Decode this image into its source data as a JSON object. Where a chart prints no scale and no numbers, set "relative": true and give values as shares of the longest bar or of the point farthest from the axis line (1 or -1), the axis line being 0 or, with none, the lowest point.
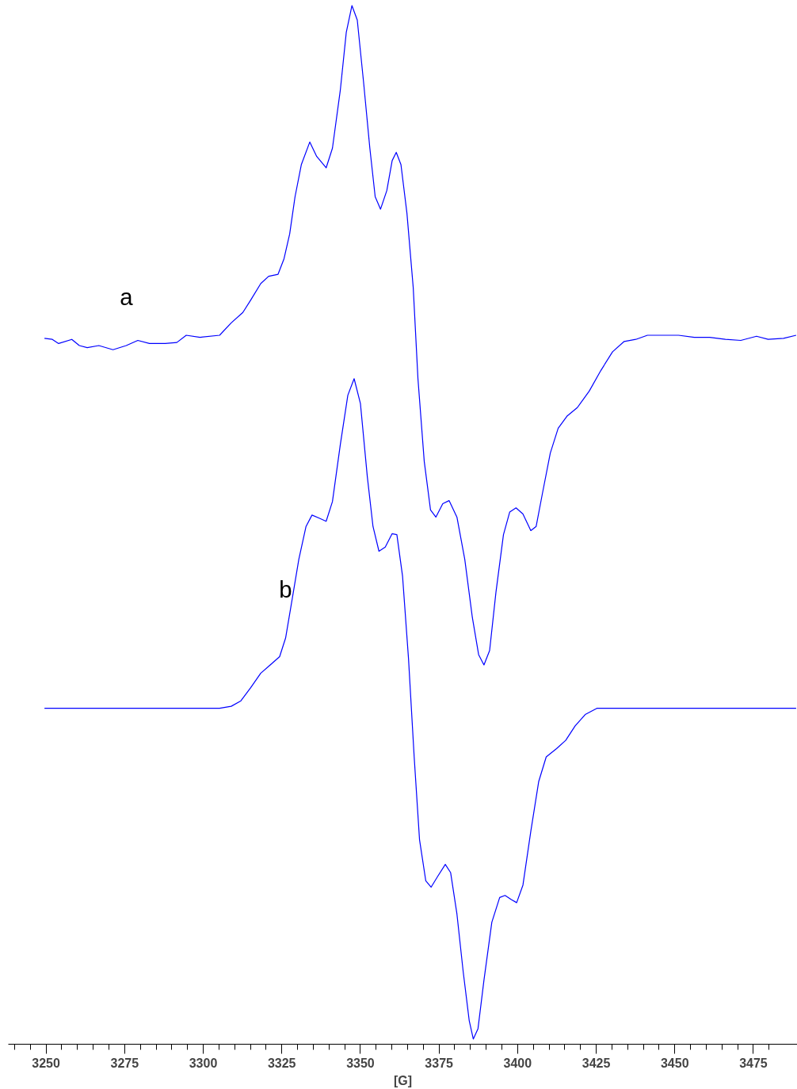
{
  "chart_data": {
    "type": "line",
    "relative": true,
    "xlabel": "[G]",
    "legend": false,
    "grid": false,
    "tick_labels": "x",
    "line_style": "solid",
    "marker": "none",
    "xlim": [
      3238,
      3489
    ],
    "xticks": [
      {
        "value": 3240,
        "label": null
      },
      {
        "value": 3245,
        "label": null
      },
      3250,
      {
        "value": 3255,
        "label": null
      },
      {
        "value": 3260,
        "label": null
      },
      {
        "value": 3265,
        "label": null
      },
      {
        "value": 3270,
        "label": null
      },
      3275,
      {
        "value": 3280,
        "label": null
      },
      {
        "value": 3285,
        "label": null
      },
      {
        "value": 3290,
        "label": null
      },
      {
        "value": 3295,
        "label": null
      },
      3300,
      {
        "value": 3305,
        "label": null
      },
      {
        "value": 3310,
        "label": null
      },
      {
        "value": 3315,
        "label": null
      },
      {
        "value": 3320,
        "label": null
      },
      3325,
      {
        "value": 3330,
        "label": null
      },
      {
        "value": 3335,
        "label": null
      },
      {
        "value": 3340,
        "label": null
      },
      {
        "value": 3345,
        "label": null
      },
      3350,
      {
        "value": 3355,
        "label": null
      },
      {
        "value": 3360,
        "label": null
      },
      {
        "value": 3365,
        "label": null
      },
      {
        "value": 3370,
        "label": null
      },
      3375,
      {
        "value": 3380,
        "label": null
      },
      {
        "value": 3385,
        "label": null
      },
      {
        "value": 3390,
        "label": null
      },
      {
        "value": 3395,
        "label": null
      },
      3400,
      {
        "value": 3405,
        "label": null
      },
      {
        "value": 3410,
        "label": null
      },
      {
        "value": 3415,
        "label": null
      },
      {
        "value": 3420,
        "label": null
      },
      3425,
      {
        "value": 3430,
        "label": null
      },
      {
        "value": 3435,
        "label": null
      },
      {
        "value": 3440,
        "label": null
      },
      {
        "value": 3445,
        "label": null
      },
      3450,
      {
        "value": 3455,
        "label": null
      },
      {
        "value": 3460,
        "label": null
      },
      {
        "value": 3465,
        "label": null
      },
      {
        "value": 3470,
        "label": null
      },
      3475,
      {
        "value": 3480,
        "label": null
      }
    ],
    "series": [
      {
        "name": "a",
        "color": "#0000ff",
        "x": [
          3249.5,
          3252.0,
          3254.0,
          3258.2,
          3260.6,
          3263.1,
          3266.8,
          3271.3,
          3275.5,
          3279.2,
          3282.9,
          3287.9,
          3291.6,
          3294.6,
          3299.0,
          3305.2,
          3308.9,
          3312.6,
          3315.1,
          3318.3,
          3320.8,
          3323.8,
          3325.7,
          3327.5,
          3329.2,
          3331.2,
          3333.9,
          3336.1,
          3339.1,
          3341.1,
          3343.6,
          3345.5,
          3347.3,
          3349.0,
          3351.0,
          3353.0,
          3354.7,
          3356.4,
          3358.4,
          3360.1,
          3361.4,
          3362.9,
          3364.8,
          3366.8,
          3368.3,
          3370.3,
          3372.3,
          3374.0,
          3376.2,
          3378.2,
          3380.7,
          3383.2,
          3385.6,
          3387.6,
          3389.3,
          3391.1,
          3393.1,
          3395.5,
          3397.5,
          3399.5,
          3401.7,
          3404.2,
          3405.9,
          3407.9,
          3410.4,
          3412.9,
          3415.8,
          3419.0,
          3422.8,
          3426.5,
          3430.2,
          3433.9,
          3437.6,
          3441.3,
          3446.3,
          3451.2,
          3456.2,
          3461.1,
          3466.1,
          3471.0,
          3476.0,
          3479.7,
          3484.6,
          3488.6
        ],
        "values": [
          0.678,
          0.677,
          0.673,
          0.677,
          0.671,
          0.669,
          0.671,
          0.667,
          0.671,
          0.676,
          0.673,
          0.673,
          0.674,
          0.681,
          0.679,
          0.681,
          0.693,
          0.703,
          0.715,
          0.731,
          0.738,
          0.74,
          0.755,
          0.779,
          0.815,
          0.846,
          0.868,
          0.854,
          0.843,
          0.862,
          0.918,
          0.974,
          1.0,
          0.986,
          0.926,
          0.862,
          0.815,
          0.803,
          0.821,
          0.85,
          0.858,
          0.846,
          0.799,
          0.727,
          0.639,
          0.559,
          0.512,
          0.505,
          0.518,
          0.521,
          0.505,
          0.464,
          0.408,
          0.372,
          0.362,
          0.376,
          0.432,
          0.488,
          0.51,
          0.514,
          0.508,
          0.492,
          0.496,
          0.528,
          0.567,
          0.591,
          0.603,
          0.611,
          0.627,
          0.647,
          0.665,
          0.675,
          0.677,
          0.681,
          0.681,
          0.681,
          0.679,
          0.679,
          0.677,
          0.676,
          0.68,
          0.677,
          0.678,
          0.681
        ]
      },
      {
        "name": "b",
        "color": "#0000ff",
        "x": [
          3249.5,
          3305.2,
          3308.9,
          3311.9,
          3315.1,
          3318.3,
          3321.3,
          3324.3,
          3326.2,
          3328.2,
          3330.4,
          3332.7,
          3334.6,
          3336.9,
          3339.1,
          3341.1,
          3343.6,
          3346.0,
          3348.0,
          3350.0,
          3352.2,
          3354.0,
          3355.9,
          3357.9,
          3360.1,
          3361.6,
          3363.4,
          3365.3,
          3367.1,
          3368.8,
          3370.8,
          3372.5,
          3374.5,
          3377.0,
          3378.7,
          3380.7,
          3382.7,
          3384.6,
          3385.9,
          3387.4,
          3389.3,
          3391.8,
          3394.3,
          3396.0,
          3398.0,
          3399.7,
          3401.7,
          3404.2,
          3406.7,
          3409.1,
          3412.4,
          3415.3,
          3418.3,
          3421.5,
          3425.2,
          3430.2,
          3488.6
        ],
        "values": [
          0.32,
          0.32,
          0.322,
          0.327,
          0.34,
          0.354,
          0.362,
          0.37,
          0.388,
          0.424,
          0.464,
          0.496,
          0.507,
          0.504,
          0.501,
          0.52,
          0.575,
          0.623,
          0.639,
          0.615,
          0.544,
          0.496,
          0.472,
          0.476,
          0.489,
          0.488,
          0.448,
          0.368,
          0.273,
          0.193,
          0.153,
          0.147,
          0.157,
          0.169,
          0.161,
          0.121,
          0.065,
          0.018,
          0.0,
          0.01,
          0.057,
          0.113,
          0.137,
          0.139,
          0.135,
          0.132,
          0.149,
          0.201,
          0.249,
          0.273,
          0.281,
          0.289,
          0.303,
          0.314,
          0.32,
          0.32,
          0.32
        ]
      }
    ]
  }
}
